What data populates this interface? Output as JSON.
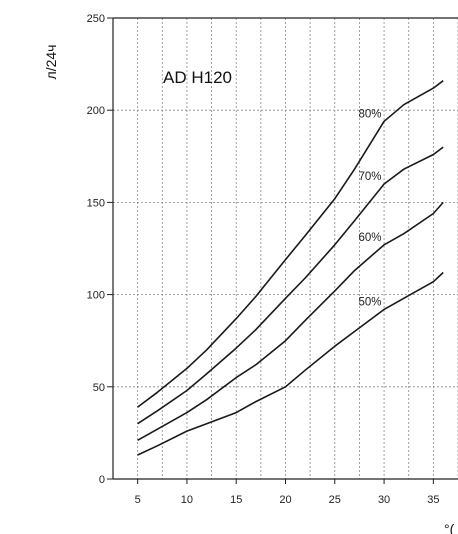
{
  "chart_data": {
    "type": "line",
    "title": "AD H120",
    "ylabel": "л/24ч",
    "xlabel_partial": "°(",
    "xlim": [
      2.5,
      37.5
    ],
    "ylim": [
      0,
      250
    ],
    "xticks": [
      5,
      10,
      15,
      20,
      25,
      30,
      35
    ],
    "yticks": [
      0,
      50,
      100,
      150,
      200,
      250
    ],
    "grid": true,
    "series": [
      {
        "name": "80%",
        "x": [
          5,
          7,
          10,
          12,
          15,
          17,
          20,
          22,
          25,
          27,
          30,
          32,
          35,
          36
        ],
        "y": [
          39,
          47,
          60,
          70,
          87,
          99,
          119,
          132,
          152,
          168,
          194,
          203,
          212,
          216
        ]
      },
      {
        "name": "70%",
        "x": [
          5,
          7,
          10,
          12,
          15,
          17,
          20,
          22,
          25,
          27,
          30,
          32,
          35,
          36
        ],
        "y": [
          30,
          37,
          48,
          57,
          71,
          81,
          98,
          109,
          127,
          140,
          160,
          168,
          176,
          180
        ]
      },
      {
        "name": "60%",
        "x": [
          5,
          7,
          10,
          12,
          15,
          17,
          20,
          22,
          25,
          27,
          30,
          32,
          35,
          36
        ],
        "y": [
          21,
          27,
          36,
          43,
          55,
          62,
          75,
          86,
          102,
          113,
          127,
          133,
          144,
          150
        ]
      },
      {
        "name": "50%",
        "x": [
          5,
          7,
          10,
          12,
          15,
          17,
          20,
          22,
          25,
          27,
          30,
          32,
          35,
          36
        ],
        "y": [
          13,
          18,
          26,
          30,
          36,
          42,
          50,
          59,
          72,
          80,
          92,
          98,
          107,
          112
        ]
      }
    ]
  }
}
